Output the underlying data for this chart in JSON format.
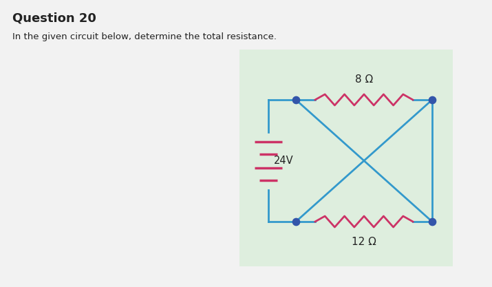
{
  "title": "Question 20",
  "subtitle": "In the given circuit below, determine the total resistance.",
  "bg_color": "#deeede",
  "wire_color": "#3399cc",
  "resistor_color": "#cc3366",
  "dot_color": "#3355aa",
  "battery_color": "#cc3366",
  "label_color": "#222222",
  "voltage": "24V",
  "r_top": "8 Ω",
  "r_bottom": "12 Ω",
  "panel_bg": "#e8e8e8",
  "page_bg": "#f2f2f2"
}
